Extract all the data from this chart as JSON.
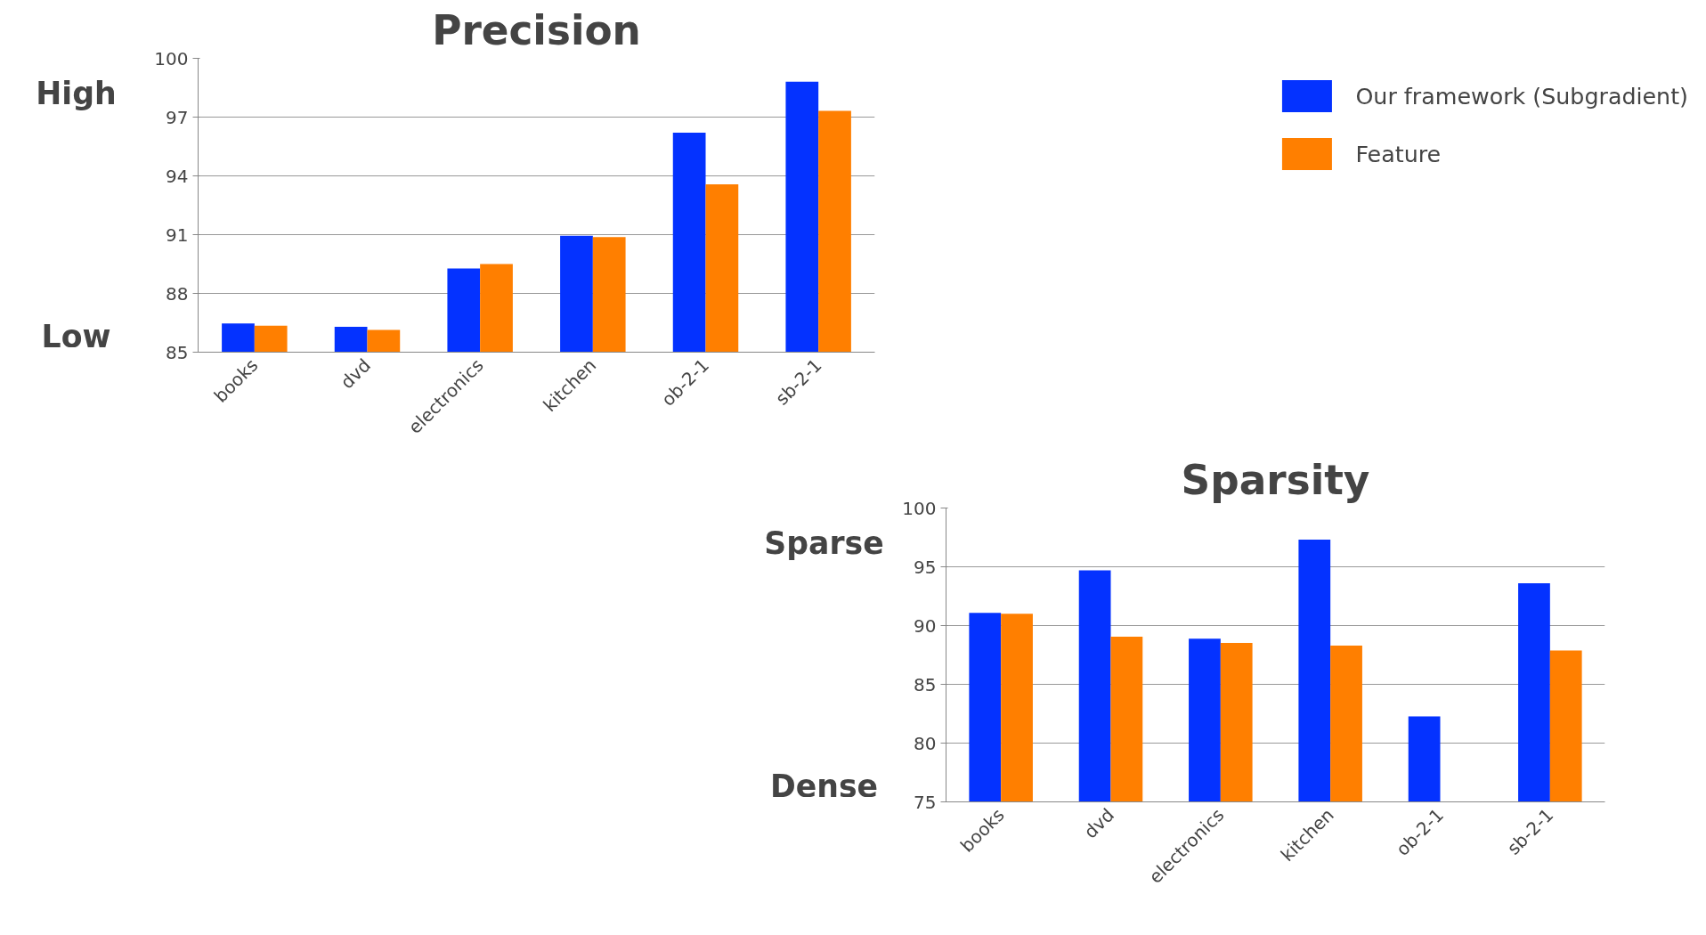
{
  "chart_data": [
    {
      "type": "bar",
      "title": "Precision",
      "categories": [
        "books",
        "dvd",
        "electronics",
        "kitchen",
        "ob-2-1",
        "sb-2-1"
      ],
      "series": [
        {
          "name": "Our framework (Subgradient)",
          "color": "#0432ff",
          "values": [
            86.47,
            86.3,
            89.27,
            90.94,
            96.2,
            98.81
          ]
        },
        {
          "name": "Feature",
          "color": "#ff7f00",
          "values": [
            86.35,
            86.14,
            89.5,
            90.87,
            93.57,
            97.32
          ]
        }
      ],
      "ylim": [
        85,
        100
      ],
      "yticks": [
        85,
        88,
        91,
        94,
        97,
        100
      ],
      "grid": "y",
      "legend": "right",
      "annotations": [
        "High",
        "Low"
      ]
    },
    {
      "type": "bar",
      "title": "Sparsity",
      "categories": [
        "books",
        "dvd",
        "electronics",
        "kitchen",
        "ob-2-1",
        "sb-2-1"
      ],
      "series": [
        {
          "color": "#0432ff",
          "values": [
            91.08,
            94.69,
            88.88,
            97.31,
            82.27,
            93.6
          ]
        },
        {
          "color": "#ff7f00",
          "values": [
            91.01,
            89.06,
            88.53,
            88.29,
            75,
            87.87
          ]
        }
      ],
      "ylim": [
        75,
        100
      ],
      "yticks": [
        75,
        80,
        85,
        90,
        95,
        100
      ],
      "grid": "y",
      "annotations": [
        "Sparse",
        "Dense"
      ]
    }
  ]
}
